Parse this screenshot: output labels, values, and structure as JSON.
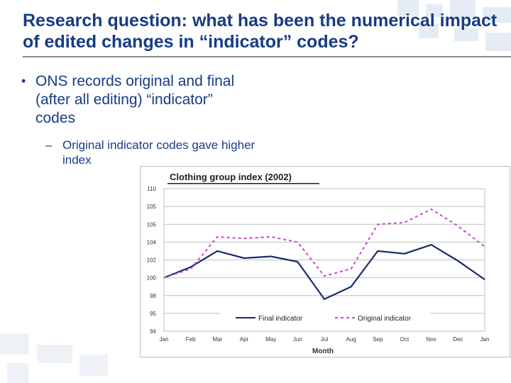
{
  "slide": {
    "title": "Research question: what has been the numerical impact of edited changes in “indicator” codes?",
    "bullet": "ONS records original and final (after all editing) “indicator” codes",
    "sub_bullet": "Original indicator codes gave higher index",
    "title_color": "#173b86"
  },
  "chart_data": {
    "type": "line",
    "title": "Clothing group index (2002)",
    "xlabel": "Month",
    "ylabel": "",
    "categories": [
      "Jan",
      "Feb",
      "Mar",
      "Apr",
      "May",
      "Jun",
      "Jul",
      "Aug",
      "Sep",
      "Oct",
      "Nov",
      "Dec",
      "Jan"
    ],
    "y_tick_labels": [
      "94",
      "95",
      "98",
      "100",
      "102",
      "104",
      "105",
      "105",
      "110"
    ],
    "grid": true,
    "legend_position": "bottom-inside",
    "series": [
      {
        "name": "Final indicator",
        "style": "solid",
        "color": "#1b2a6b",
        "values": [
          100,
          101.2,
          103,
          102.2,
          102.4,
          101.8,
          97.6,
          99,
          103,
          102.7,
          103.7,
          101.9,
          99.8
        ]
      },
      {
        "name": "Original indicator",
        "style": "dashed",
        "color": "#cc44cc",
        "values": [
          100,
          101,
          104.6,
          104.4,
          104.6,
          104,
          100.2,
          101,
          106,
          106.2,
          107.7,
          105.8,
          103.5
        ]
      }
    ]
  }
}
